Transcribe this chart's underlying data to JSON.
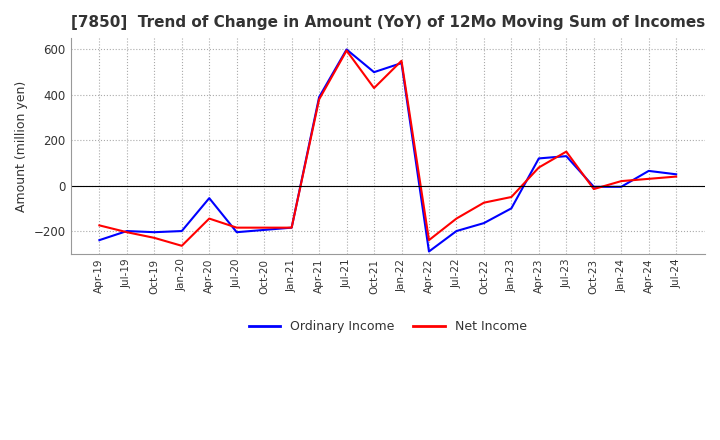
{
  "title": "[7850]  Trend of Change in Amount (YoY) of 12Mo Moving Sum of Incomes",
  "ylabel": "Amount (million yen)",
  "ylim": [
    -300,
    650
  ],
  "yticks": [
    -200,
    0,
    200,
    400,
    600
  ],
  "legend_labels": [
    "Ordinary Income",
    "Net Income"
  ],
  "line_colors": [
    "#0000FF",
    "#FF0000"
  ],
  "background_color": "#FFFFFF",
  "grid_color": "#AAAAAA",
  "x_labels": [
    "Apr-19",
    "Jul-19",
    "Oct-19",
    "Jan-20",
    "Apr-20",
    "Jul-20",
    "Oct-20",
    "Jan-21",
    "Apr-21",
    "Jul-21",
    "Oct-21",
    "Jan-22",
    "Apr-22",
    "Jul-22",
    "Oct-22",
    "Jan-23",
    "Apr-23",
    "Jul-23",
    "Oct-23",
    "Jan-24",
    "Apr-24",
    "Jul-24"
  ],
  "ordinary_income": [
    -240,
    -200,
    -205,
    -200,
    -55,
    -205,
    -195,
    -185,
    390,
    600,
    500,
    540,
    -290,
    -200,
    -165,
    -100,
    120,
    130,
    -5,
    -5,
    65,
    50
  ],
  "net_income": [
    -175,
    -205,
    -230,
    -265,
    -145,
    -185,
    -185,
    -185,
    380,
    595,
    430,
    550,
    -240,
    -145,
    -75,
    -50,
    80,
    150,
    -15,
    20,
    30,
    40
  ]
}
